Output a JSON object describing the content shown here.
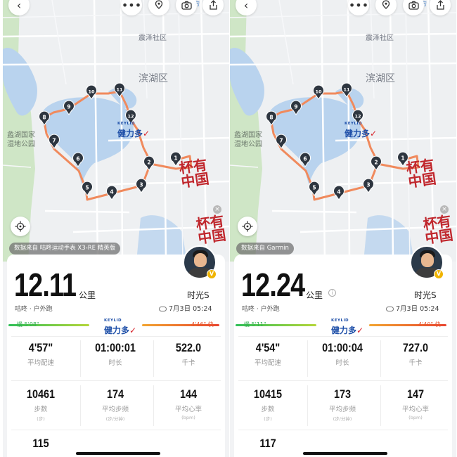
{
  "screens": [
    {
      "map": {
        "labels": {
          "district_north": "震泽社区",
          "district": "滨湖区",
          "park": [
            "蠡湖国家",
            "湿地公园"
          ]
        },
        "road_sign": "宕",
        "data_source": "数据来自 咕咚运动手表 X3-RE 精英版",
        "sponsor_small": "KEYLID",
        "sponsor_name": "健力多",
        "seal_text": "杯有中国",
        "waypoints": [
          "1",
          "2",
          "3",
          "4",
          "5",
          "6",
          "7",
          "8",
          "9",
          "10",
          "11",
          "12"
        ]
      },
      "summary": {
        "distance": "12.11",
        "distance_unit": "公里",
        "activity": "咕咚 · 户外跑",
        "username": "时光S",
        "date": "7月3日 05:24",
        "slow_pace": "慢 5'08\"",
        "fast_pace": "4'46\" 快",
        "show_info_icon": false
      },
      "stats": [
        {
          "value": "4'57\"",
          "label": "平均配速",
          "sub": ""
        },
        {
          "value": "01:00:01",
          "label": "时长",
          "sub": ""
        },
        {
          "value": "522.0",
          "label": "千卡",
          "sub": ""
        },
        {
          "value": "10461",
          "label": "步数",
          "sub": "(步)"
        },
        {
          "value": "174",
          "label": "平均步频",
          "sub": "(步/分钟)"
        },
        {
          "value": "144",
          "label": "平均心率",
          "sub": "(bpm)"
        },
        {
          "value": "115",
          "label": "",
          "sub": ""
        }
      ]
    },
    {
      "map": {
        "labels": {
          "district_north": "震泽社区",
          "district": "滨湖区",
          "park": [
            "蠡湖国家",
            "湿地公园"
          ]
        },
        "road_sign": "宕",
        "data_source": "数据来自 Garmin",
        "sponsor_small": "KEYLID",
        "sponsor_name": "健力多",
        "seal_text": "杯有中国",
        "waypoints": [
          "1",
          "2",
          "3",
          "4",
          "5",
          "6",
          "7",
          "8",
          "9",
          "10",
          "11",
          "12"
        ]
      },
      "summary": {
        "distance": "12.24",
        "distance_unit": "公里",
        "activity": "咕咚 · 户外跑",
        "username": "时光S",
        "date": "7月3日 05:24",
        "slow_pace": "慢 5'11\"",
        "fast_pace": "4'40\" 快",
        "show_info_icon": true
      },
      "stats": [
        {
          "value": "4'54\"",
          "label": "平均配速",
          "sub": ""
        },
        {
          "value": "01:00:04",
          "label": "时长",
          "sub": ""
        },
        {
          "value": "727.0",
          "label": "千卡",
          "sub": ""
        },
        {
          "value": "10415",
          "label": "步数",
          "sub": "(步)"
        },
        {
          "value": "173",
          "label": "平均步频",
          "sub": "(步/分钟)"
        },
        {
          "value": "147",
          "label": "平均心率",
          "sub": "(bpm)"
        },
        {
          "value": "117",
          "label": "",
          "sub": ""
        }
      ]
    }
  ],
  "colors": {
    "route": "#f08a5d",
    "pin": "#2e3640",
    "water": "#b9d3ee",
    "park": "#cfe6c6",
    "slow": "#2fae4e",
    "fast": "#e8552f",
    "seal": "#c0272d",
    "brand": "#1e4fa8"
  },
  "icons": [
    "back-arrow-icon",
    "more-icon",
    "location-pin-icon",
    "camera-icon",
    "share-icon",
    "locate-icon",
    "close-icon",
    "cloud-icon",
    "info-icon"
  ]
}
